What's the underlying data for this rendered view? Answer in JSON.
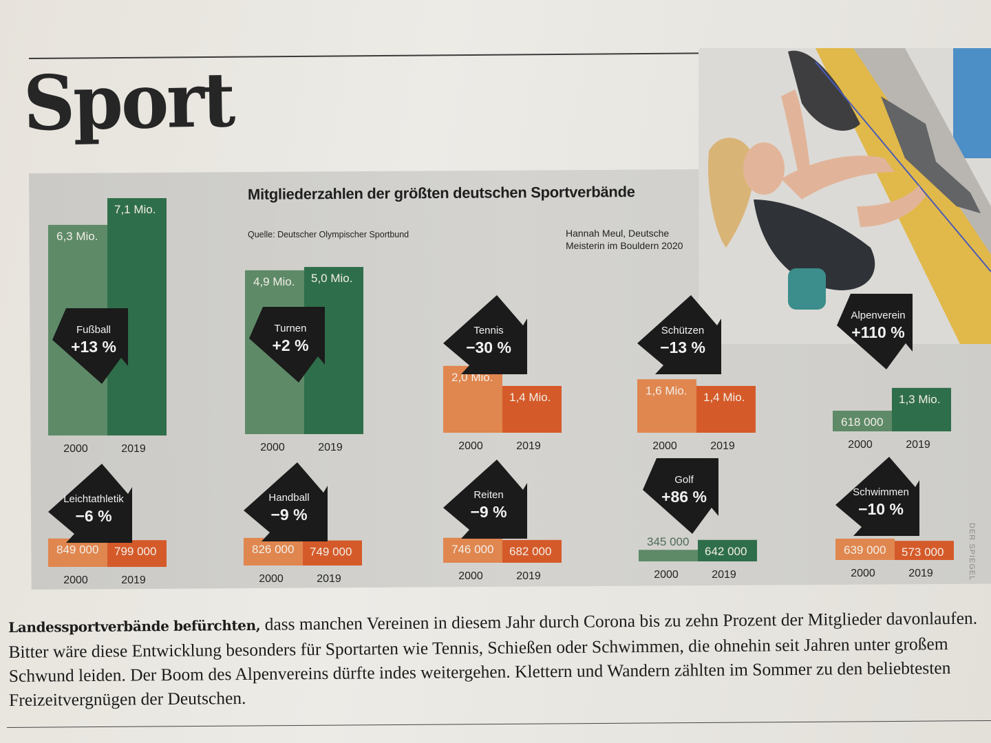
{
  "page": {
    "section_title": "Sport",
    "photo_caption": "Hannah Meul, Deutsche Meisterin im Bouldern 2020",
    "photo_subject": "climber-photo",
    "credit": "DER SPIEGEL",
    "body_lead": "Landessportverbände befürchten,",
    "body_text": " dass manchen Vereinen in diesem Jahr durch Corona bis zu zehn Prozent der Mitglieder davonlaufen. Bitter wäre diese Entwicklung besonders für Sportarten wie Tennis, Schießen oder Schwimmen, die ohnehin seit Jahren unter großem Schwund leiden. Der Boom des Alpenvereins dürfte indes weitergehen. Klettern und Wandern zählten im Sommer zu den beliebtesten Freizeitvergnügen der Deutschen."
  },
  "colors": {
    "green_2000": "#5e8a68",
    "green_2019": "#2f6e4a",
    "orange_2000": "#e0864f",
    "orange_2019": "#d55a2a",
    "arrow": "#1b1b1b"
  },
  "chart_data": {
    "type": "bar",
    "title": "Mitgliederzahlen der größten deutschen Sportverbände",
    "source": "Quelle: Deutscher Olympischer Sportbund",
    "categories": [
      "2000",
      "2019"
    ],
    "unit": "members",
    "series": [
      {
        "name": "Fußball",
        "change": "+13 %",
        "direction": "up",
        "values": [
          6300000,
          7100000
        ],
        "labels": [
          "6,3 Mio.",
          "7,1 Mio."
        ],
        "years": [
          "2000",
          "2019"
        ]
      },
      {
        "name": "Turnen",
        "change": "+2 %",
        "direction": "up",
        "values": [
          4900000,
          5000000
        ],
        "labels": [
          "4,9 Mio.",
          "5,0 Mio."
        ],
        "years": [
          "2000",
          "2019"
        ]
      },
      {
        "name": "Tennis",
        "change": "−30 %",
        "direction": "down",
        "values": [
          2000000,
          1400000
        ],
        "labels": [
          "2,0 Mio.",
          "1,4 Mio."
        ],
        "years": [
          "2000",
          "2019"
        ]
      },
      {
        "name": "Schützen",
        "change": "−13 %",
        "direction": "down",
        "values": [
          1600000,
          1400000
        ],
        "labels": [
          "1,6 Mio.",
          "1,4 Mio."
        ],
        "years": [
          "2000",
          "2019"
        ]
      },
      {
        "name": "Alpenverein",
        "change": "+110 %",
        "direction": "up",
        "values": [
          618000,
          1300000
        ],
        "labels": [
          "618 000",
          "1,3 Mio."
        ],
        "years": [
          "2000",
          "2019"
        ]
      },
      {
        "name": "Leichtathletik",
        "change": "−6 %",
        "direction": "down",
        "values": [
          849000,
          799000
        ],
        "labels": [
          "849 000",
          "799 000"
        ],
        "years": [
          "2000",
          "2019"
        ]
      },
      {
        "name": "Handball",
        "change": "−9 %",
        "direction": "down",
        "values": [
          826000,
          749000
        ],
        "labels": [
          "826 000",
          "749 000"
        ],
        "years": [
          "2000",
          "2019"
        ]
      },
      {
        "name": "Reiten",
        "change": "−9 %",
        "direction": "down",
        "values": [
          746000,
          682000
        ],
        "labels": [
          "746 000",
          "682 000"
        ],
        "years": [
          "2000",
          "2019"
        ]
      },
      {
        "name": "Golf",
        "change": "+86 %",
        "direction": "up",
        "values": [
          345000,
          642000
        ],
        "labels": [
          "345 000",
          "642 000"
        ],
        "years": [
          "2000",
          "2019"
        ]
      },
      {
        "name": "Schwimmen",
        "change": "−10 %",
        "direction": "down",
        "values": [
          639000,
          573000
        ],
        "labels": [
          "639 000",
          "573 000"
        ],
        "years": [
          "2000",
          "2019"
        ]
      }
    ]
  }
}
